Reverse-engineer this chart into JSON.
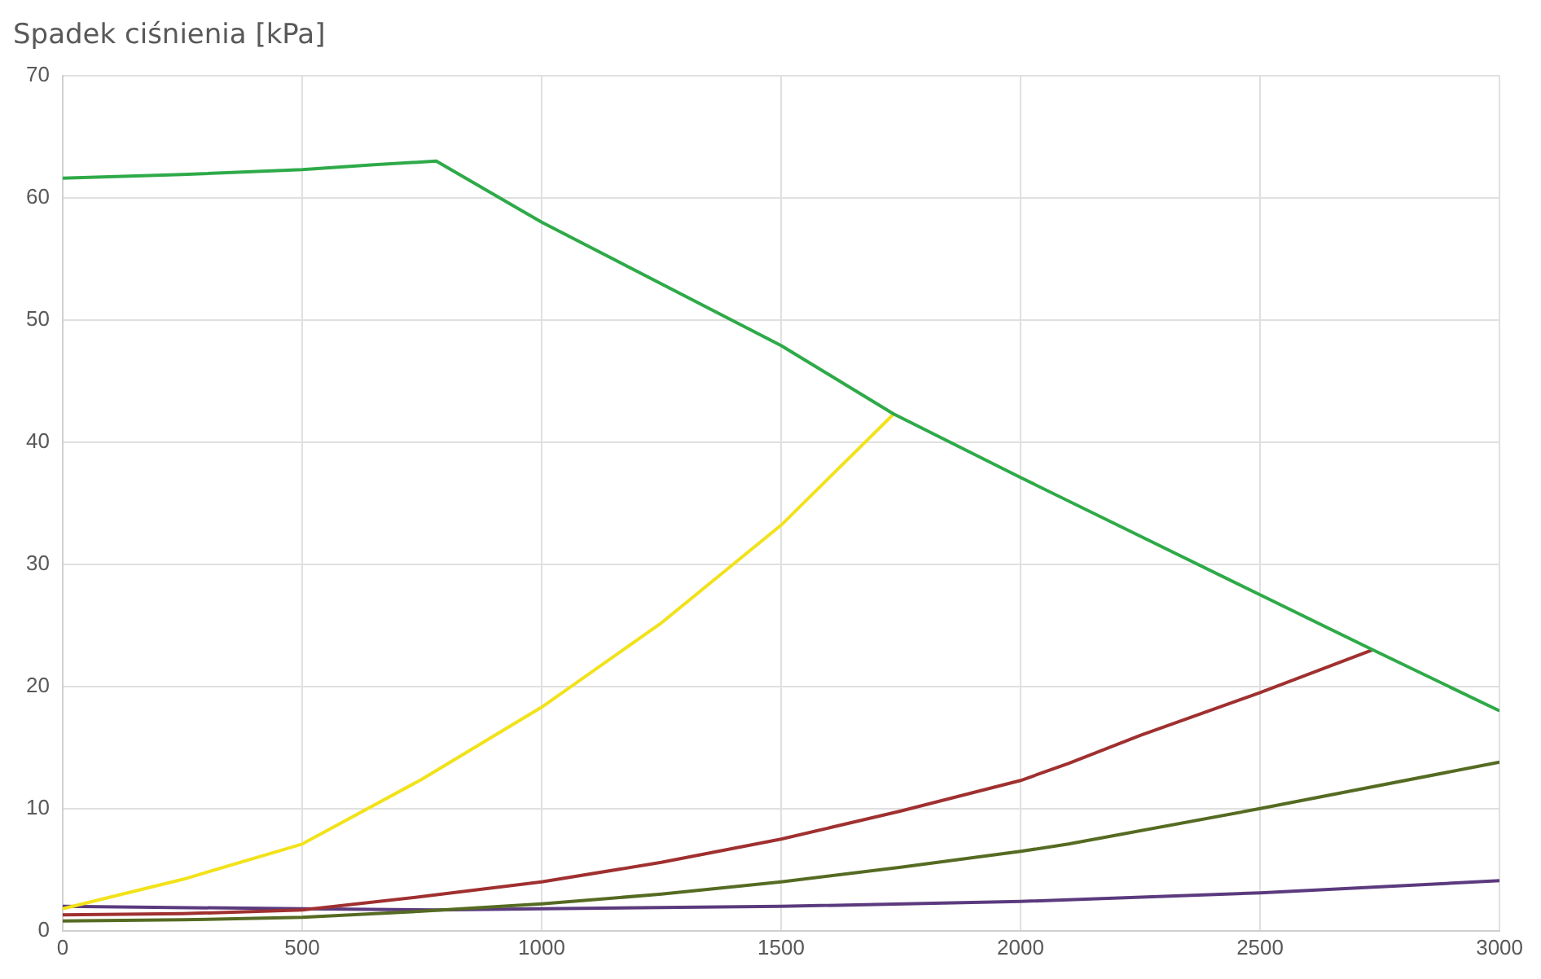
{
  "chart_data": {
    "type": "line",
    "ylabel": "Spadek ciśnienia [kPa]",
    "xlim": [
      0,
      3000
    ],
    "xticks": [
      0,
      500,
      1000,
      1500,
      2000,
      2500,
      3000
    ],
    "ylim": [
      0,
      70
    ],
    "yticks": [
      0,
      10,
      20,
      30,
      40,
      50,
      60,
      70
    ],
    "grid": true,
    "legend": false,
    "marker": "none",
    "line_style": "solid",
    "series": [
      {
        "color": "#2eaa48",
        "x": [
          0,
          250,
          500,
          650,
          780,
          1000,
          1500,
          1735,
          2000,
          2500,
          2735,
          3000
        ],
        "values": [
          61.6,
          61.9,
          62.3,
          62.7,
          63,
          58,
          47.9,
          42.3,
          37.1,
          27.5,
          23,
          18
        ]
      },
      {
        "color": "#f2e21a",
        "x": [
          0,
          250,
          500,
          750,
          1000,
          1250,
          1500,
          1735
        ],
        "values": [
          1.8,
          4.2,
          7.1,
          12.4,
          18.3,
          25.2,
          33.2,
          42.3
        ]
      },
      {
        "color": "#a03030",
        "x": [
          0,
          250,
          500,
          750,
          1000,
          1250,
          1500,
          1750,
          2000,
          2100,
          2250,
          2500,
          2735
        ],
        "values": [
          1.3,
          1.4,
          1.7,
          2.8,
          4,
          5.6,
          7.5,
          9.8,
          12.3,
          13.7,
          16,
          19.5,
          23
        ]
      },
      {
        "color": "#556b22",
        "x": [
          0,
          250,
          500,
          750,
          1000,
          1250,
          1500,
          1750,
          2000,
          2100,
          2500,
          3000
        ],
        "values": [
          0.8,
          0.9,
          1.1,
          1.6,
          2.2,
          3,
          4,
          5.2,
          6.5,
          7.1,
          10,
          13.8
        ]
      },
      {
        "color": "#5b3a7e",
        "x": [
          0,
          500,
          780,
          1000,
          1500,
          2000,
          2500,
          3000
        ],
        "values": [
          2,
          1.8,
          1.7,
          1.8,
          2,
          2.4,
          3.1,
          4.1
        ]
      }
    ]
  }
}
